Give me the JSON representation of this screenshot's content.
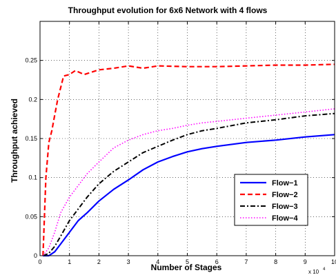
{
  "chart_data": {
    "type": "line",
    "title": "Throughput evolution for 6x6 Network with 4 flows",
    "xlabel": "Number of Stages",
    "ylabel": "Throughput achieved",
    "x_multiplier_label": "x 10",
    "x_multiplier_exp": "4",
    "xlim": [
      0,
      10
    ],
    "ylim": [
      0,
      0.3
    ],
    "x_ticks": [
      "0",
      "1",
      "2",
      "3",
      "4",
      "5",
      "6",
      "7",
      "8",
      "9",
      "10"
    ],
    "x_tick_values": [
      0,
      1,
      2,
      3,
      4,
      5,
      6,
      7,
      8,
      9,
      10
    ],
    "y_ticks": [
      "0",
      "0.05",
      "0.1",
      "0.15",
      "0.2",
      "0.25"
    ],
    "y_tick_values": [
      0,
      0.05,
      0.1,
      0.15,
      0.2,
      0.25
    ],
    "grid": true,
    "legend_position": "lower-right",
    "series": [
      {
        "name": "Flow−1",
        "color": "#0000ff",
        "dash": "solid",
        "x": [
          0.1,
          0.3,
          0.5,
          0.7,
          1.0,
          1.3,
          1.6,
          2.0,
          2.5,
          3.0,
          3.5,
          4.0,
          4.5,
          5.0,
          5.5,
          6.0,
          7.0,
          8.0,
          9.0,
          10.0
        ],
        "y": [
          0,
          0,
          0.005,
          0.015,
          0.03,
          0.045,
          0.055,
          0.07,
          0.085,
          0.097,
          0.11,
          0.12,
          0.127,
          0.133,
          0.137,
          0.14,
          0.145,
          0.148,
          0.152,
          0.155
        ]
      },
      {
        "name": "Flow−2",
        "color": "#ff0000",
        "dash": "dash",
        "x": [
          0.1,
          0.2,
          0.3,
          0.4,
          0.5,
          0.6,
          0.8,
          1.0,
          1.2,
          1.5,
          2.0,
          2.5,
          3.0,
          3.5,
          4.0,
          5.0,
          6.0,
          7.0,
          8.0,
          9.0,
          10.0
        ],
        "y": [
          0,
          0.1,
          0.145,
          0.16,
          0.18,
          0.2,
          0.23,
          0.232,
          0.237,
          0.232,
          0.238,
          0.24,
          0.243,
          0.24,
          0.243,
          0.242,
          0.242,
          0.243,
          0.244,
          0.244,
          0.245
        ]
      },
      {
        "name": "Flow−3",
        "color": "#000000",
        "dash": "dashdot",
        "x": [
          0.1,
          0.3,
          0.5,
          0.7,
          1.0,
          1.3,
          1.6,
          2.0,
          2.5,
          3.0,
          3.5,
          4.0,
          4.5,
          5.0,
          5.5,
          6.0,
          7.0,
          8.0,
          9.0,
          10.0
        ],
        "y": [
          0,
          0.003,
          0.012,
          0.025,
          0.045,
          0.06,
          0.075,
          0.092,
          0.108,
          0.12,
          0.132,
          0.14,
          0.148,
          0.155,
          0.16,
          0.163,
          0.17,
          0.174,
          0.179,
          0.182
        ]
      },
      {
        "name": "Flow−4",
        "color": "#ff00ff",
        "dash": "dot",
        "x": [
          0.1,
          0.3,
          0.5,
          0.7,
          1.0,
          1.3,
          1.6,
          2.0,
          2.5,
          3.0,
          3.5,
          4.0,
          4.5,
          5.0,
          5.5,
          6.0,
          7.0,
          8.0,
          9.0,
          10.0
        ],
        "y": [
          0,
          0.01,
          0.03,
          0.055,
          0.075,
          0.09,
          0.105,
          0.12,
          0.138,
          0.148,
          0.155,
          0.16,
          0.163,
          0.167,
          0.17,
          0.172,
          0.176,
          0.18,
          0.184,
          0.188
        ]
      }
    ]
  }
}
